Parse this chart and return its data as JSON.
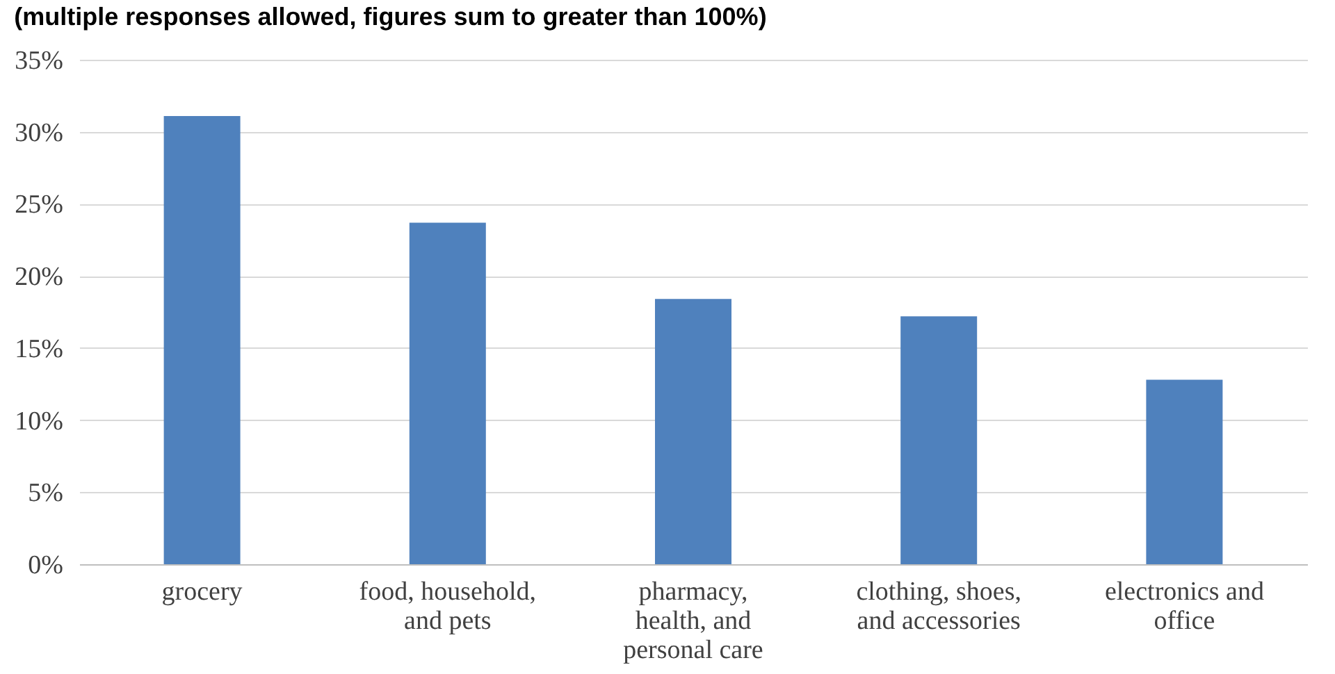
{
  "chart_data": {
    "type": "bar",
    "subtitle": "(multiple responses allowed, figures sum to greater than 100%)",
    "categories": [
      "grocery",
      "food, household, and pets",
      "pharmacy, health, and personal care",
      "clothing, shoes, and accessories",
      "electronics and office"
    ],
    "values": [
      31.1,
      23.7,
      18.4,
      17.2,
      12.8
    ],
    "color": "#4f81bd",
    "ylim": [
      0,
      35
    ],
    "yticks": [
      {
        "value": 0,
        "label": "0%"
      },
      {
        "value": 5,
        "label": "5%"
      },
      {
        "value": 10,
        "label": "10%"
      },
      {
        "value": 15,
        "label": "15%"
      },
      {
        "value": 20,
        "label": "20%"
      },
      {
        "value": 25,
        "label": "25%"
      },
      {
        "value": 30,
        "label": "30%"
      },
      {
        "value": 35,
        "label": "35%"
      }
    ],
    "grid": "y"
  }
}
